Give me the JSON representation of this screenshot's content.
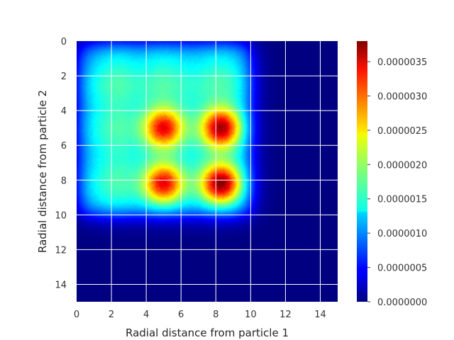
{
  "chart_data": {
    "type": "heatmap",
    "title": "",
    "xlabel": "Radial distance from particle 1",
    "ylabel": "Radial distance from particle 2",
    "xlim": [
      0,
      15
    ],
    "ylim": [
      15,
      0
    ],
    "y_axis_inverted": true,
    "grid": true,
    "colormap": "jet",
    "x_ticks": [
      "0",
      "2",
      "4",
      "6",
      "8",
      "10",
      "12",
      "14"
    ],
    "y_ticks": [
      "0",
      "2",
      "4",
      "6",
      "8",
      "10",
      "12",
      "14"
    ],
    "colorbar": {
      "min": 0.0,
      "max": 3.8e-06,
      "tick_labels": [
        "0.0000000",
        "0.0000005",
        "0.0000010",
        "0.0000015",
        "0.0000020",
        "0.0000025",
        "0.0000030",
        "0.0000035"
      ],
      "tick_values": [
        0.0,
        5e-07,
        1e-06,
        1.5e-06,
        2e-06,
        2.5e-06,
        3e-06,
        3.5e-06
      ]
    },
    "peaks": [
      {
        "x": 5.0,
        "y": 5.0,
        "value": 3.4e-06
      },
      {
        "x": 8.3,
        "y": 5.0,
        "value": 3.7e-06
      },
      {
        "x": 5.0,
        "y": 8.2,
        "value": 3.4e-06
      },
      {
        "x": 8.3,
        "y": 8.2,
        "value": 3.8e-06
      }
    ],
    "plateau": {
      "x_range": [
        0,
        10
      ],
      "y_range": [
        0,
        10
      ],
      "value": 1.5e-06
    }
  }
}
